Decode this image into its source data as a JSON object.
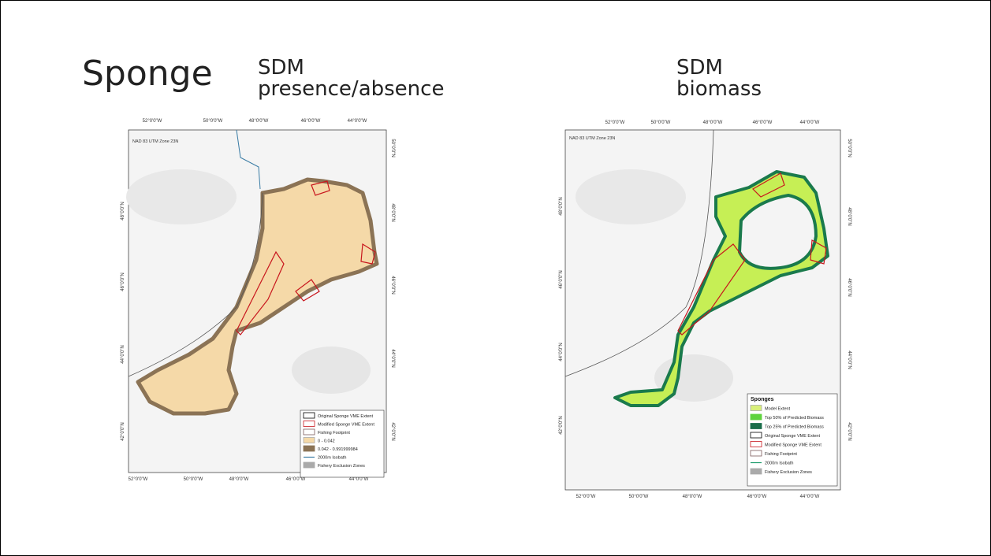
{
  "title": "Sponge",
  "maps": [
    {
      "subtitle": [
        "SDM",
        "presence/absence"
      ],
      "projection": "NAD 83 UTM Zone 23N",
      "top_labels": [
        "52°0'0\"W",
        "50°0'0\"W",
        "48°0'0\"W",
        "46°0'0\"W",
        "44°0'0\"W"
      ],
      "bottom_labels": [
        "52°0'0\"W",
        "50°0'0\"W",
        "48°0'0\"W",
        "46°0'0\"W",
        "44°0'0\"W"
      ],
      "left_labels": [
        "48°0'0\"N",
        "46°0'0\"N",
        "44°0'0\"N",
        "42°0'0\"N"
      ],
      "right_labels": [
        "50°0'0\"N",
        "48°0'0\"N",
        "46°0'0\"N",
        "44°0'0\"N",
        "42°0'0\"N"
      ],
      "legend": {
        "items": [
          "Original Sponge VME Extent",
          "Modified Sponge VME Extent",
          "Fishing Footprint",
          "0 - 0.042",
          "0.042 - 0.991999984",
          "2000m Isobath",
          "Fishery Exclusion Zones"
        ]
      }
    },
    {
      "subtitle": [
        "SDM",
        "biomass"
      ],
      "projection": "NAD 83 UTM Zone 23N",
      "top_labels": [
        "52°0'0\"W",
        "50°0'0\"W",
        "48°0'0\"W",
        "46°0'0\"W",
        "44°0'0\"W"
      ],
      "bottom_labels": [
        "52°0'0\"W",
        "50°0'0\"W",
        "48°0'0\"W",
        "46°0'0\"W",
        "44°0'0\"W"
      ],
      "left_labels": [
        "48°0'0\"N",
        "46°0'0\"N",
        "44°0'0\"N",
        "42°0'0\"N"
      ],
      "right_labels": [
        "50°0'0\"N",
        "48°0'0\"N",
        "46°0'0\"N",
        "44°0'0\"N",
        "42°0'0\"N"
      ],
      "legend": {
        "title": "Sponges",
        "items": [
          "Model Extent",
          "Top 50% of Predicted Biomass",
          "Top 25% of Predicted Biomass",
          "Original Sponge VME Extent",
          "Modified Sponge VME Extent",
          "Fishing Footprint",
          "2000m Isobath",
          "Fishery Exclusion Zones"
        ]
      }
    }
  ]
}
